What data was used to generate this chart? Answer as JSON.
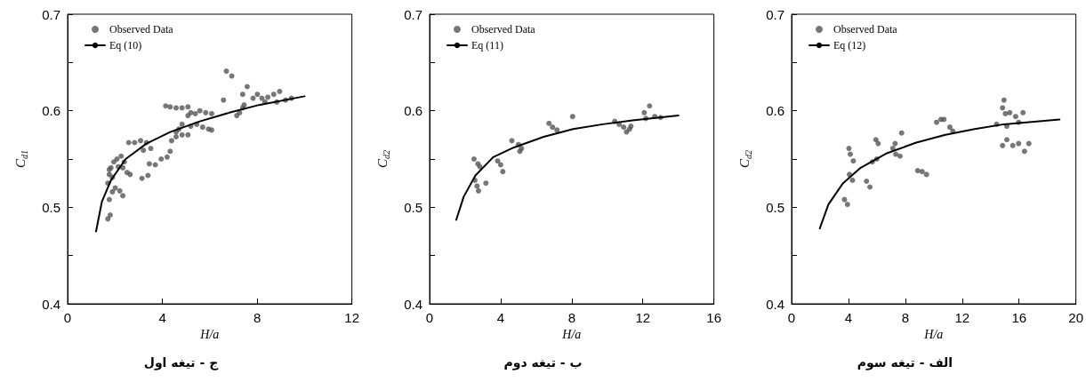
{
  "chart_data": [
    {
      "type": "scatter",
      "title": "ج - تیغه اول",
      "xlabel": "H/a",
      "ylabel": "C$_{d1}$",
      "xlim": [
        0,
        12
      ],
      "xticks": [
        0,
        4,
        8,
        12
      ],
      "ylim": [
        0.4,
        0.7
      ],
      "yticks": [
        0.4,
        {
          "value": 0.45,
          "label": null
        },
        0.5,
        {
          "value": 0.55,
          "label": null
        },
        0.6,
        {
          "value": 0.65,
          "label": null
        },
        0.7
      ],
      "legend": "top left",
      "marker": "circle",
      "series": [
        {
          "name": "Observed Data",
          "color": "#555555",
          "x": [
            1.7,
            1.8,
            1.76,
            1.89,
            2.01,
            2.2,
            2.33,
            1.7,
            1.76,
            1.83,
            1.95,
            2.08,
            2.26,
            2.39,
            2.33,
            2.51,
            2.64,
            2.14,
            1.76,
            1.89,
            2.58,
            2.83,
            3.08,
            3.33,
            3.51,
            3.2,
            3.14,
            3.39,
            3.45,
            3.7,
            3.95,
            4.2,
            4.33,
            4.39,
            4.58,
            4.83,
            5.08,
            4.7,
            4.83,
            4.58,
            4.14,
            4.33,
            4.58,
            4.83,
            5.08,
            5.2,
            5.39,
            5.58,
            5.83,
            6.08,
            5.08,
            5.2,
            5.45,
            5.7,
            5.95,
            6.08,
            6.58,
            7.14,
            7.26,
            7.39,
            7.45,
            7.58,
            7.39,
            7.83,
            8.01,
            8.2,
            8.45,
            8.7,
            8.95,
            9.2,
            9.45,
            6.7,
            6.93,
            8.33,
            8.83
          ],
          "values": [
            0.488,
            0.492,
            0.508,
            0.516,
            0.52,
            0.517,
            0.512,
            0.525,
            0.534,
            0.541,
            0.547,
            0.55,
            0.553,
            0.547,
            0.541,
            0.536,
            0.534,
            0.542,
            0.539,
            0.531,
            0.567,
            0.567,
            0.569,
            0.567,
            0.561,
            0.559,
            0.53,
            0.533,
            0.545,
            0.544,
            0.55,
            0.552,
            0.558,
            0.569,
            0.573,
            0.575,
            0.575,
            0.581,
            0.586,
            0.578,
            0.605,
            0.604,
            0.603,
            0.603,
            0.604,
            0.598,
            0.597,
            0.6,
            0.598,
            0.597,
            0.595,
            0.584,
            0.586,
            0.583,
            0.581,
            0.58,
            0.611,
            0.595,
            0.598,
            0.603,
            0.606,
            0.625,
            0.617,
            0.613,
            0.617,
            0.613,
            0.614,
            0.617,
            0.62,
            0.611,
            0.613,
            0.641,
            0.636,
            0.609,
            0.609
          ]
        },
        {
          "name": "Eq (10)",
          "type": "line",
          "marker": "none",
          "color": "#000000",
          "x": [
            1.2,
            1.45,
            1.83,
            2.45,
            3.33,
            4.33,
            5.58,
            6.83,
            8.08,
            10.0
          ],
          "values": [
            0.475,
            0.506,
            0.528,
            0.55,
            0.566,
            0.578,
            0.589,
            0.598,
            0.606,
            0.615
          ]
        }
      ]
    },
    {
      "type": "scatter",
      "title": "ب - تیغه دوم",
      "xlabel": "H/a",
      "ylabel": "C$_{d2}$",
      "xlim": [
        0,
        16
      ],
      "xticks": [
        0,
        4,
        8,
        12,
        16
      ],
      "ylim": [
        0.4,
        0.7
      ],
      "yticks": [
        0.4,
        {
          "value": 0.45,
          "label": null
        },
        0.5,
        {
          "value": 0.55,
          "label": null
        },
        0.6,
        {
          "value": 0.65,
          "label": null
        },
        0.7
      ],
      "legend": "top left",
      "marker": "circle",
      "series": [
        {
          "name": "Observed Data",
          "color": "#555555",
          "x": [
            2.5,
            2.72,
            2.83,
            2.55,
            2.67,
            2.75,
            3.17,
            3.83,
            4.0,
            4.12,
            4.63,
            5.0,
            5.08,
            5.17,
            6.72,
            6.92,
            7.17,
            8.05,
            10.42,
            10.67,
            10.92,
            11.08,
            11.25,
            11.33,
            12.08,
            12.38,
            12.17,
            12.67,
            13.0
          ],
          "values": [
            0.55,
            0.545,
            0.542,
            0.528,
            0.522,
            0.517,
            0.525,
            0.548,
            0.544,
            0.537,
            0.569,
            0.565,
            0.558,
            0.561,
            0.587,
            0.583,
            0.58,
            0.594,
            0.589,
            0.586,
            0.583,
            0.578,
            0.581,
            0.584,
            0.598,
            0.605,
            0.592,
            0.594,
            0.593
          ]
        },
        {
          "name": "Eq (11)",
          "type": "line",
          "marker": "none",
          "color": "#000000",
          "x": [
            1.5,
            1.92,
            2.58,
            3.58,
            4.75,
            6.42,
            8.08,
            9.75,
            11.42,
            14.0
          ],
          "values": [
            0.487,
            0.511,
            0.533,
            0.552,
            0.562,
            0.573,
            0.581,
            0.586,
            0.59,
            0.595
          ]
        }
      ]
    },
    {
      "type": "scatter",
      "title": "الف - تیغه سوم",
      "xlabel": "H/a",
      "ylabel": "C$_{d2}$",
      "xlim": [
        0,
        20
      ],
      "xticks": [
        0,
        4,
        8,
        12,
        16,
        20
      ],
      "ylim": [
        0.4,
        0.7
      ],
      "yticks": [
        0.4,
        {
          "value": 0.45,
          "label": null
        },
        0.5,
        {
          "value": 0.55,
          "label": null
        },
        0.6,
        {
          "value": 0.65,
          "label": null
        },
        0.7
      ],
      "legend": "top left",
      "marker": "circle",
      "series": [
        {
          "name": "Observed Data",
          "color": "#555555",
          "x": [
            3.72,
            3.93,
            4.03,
            4.13,
            4.34,
            4.07,
            4.28,
            5.27,
            5.51,
            5.68,
            5.99,
            5.93,
            6.09,
            7.12,
            7.33,
            7.63,
            7.28,
            7.74,
            8.87,
            9.18,
            9.49,
            10.2,
            10.51,
            10.72,
            11.13,
            11.34,
            14.42,
            14.84,
            14.94,
            15.04,
            15.35,
            15.76,
            16.28,
            15.97,
            15.14,
            14.84,
            15.14,
            15.56,
            15.97,
            16.38,
            16.69
          ],
          "values": [
            0.508,
            0.503,
            0.561,
            0.555,
            0.548,
            0.534,
            0.528,
            0.527,
            0.521,
            0.547,
            0.55,
            0.57,
            0.566,
            0.561,
            0.555,
            0.553,
            0.566,
            0.577,
            0.538,
            0.537,
            0.534,
            0.588,
            0.591,
            0.591,
            0.583,
            0.579,
            0.586,
            0.603,
            0.611,
            0.597,
            0.598,
            0.594,
            0.598,
            0.588,
            0.584,
            0.564,
            0.57,
            0.564,
            0.566,
            0.558,
            0.566
          ]
        },
        {
          "name": "Eq (12)",
          "type": "line",
          "marker": "none",
          "color": "#000000",
          "x": [
            1.98,
            2.59,
            3.62,
            4.86,
            6.71,
            8.77,
            10.82,
            12.88,
            14.94,
            18.85
          ],
          "values": [
            0.478,
            0.503,
            0.525,
            0.541,
            0.556,
            0.567,
            0.575,
            0.581,
            0.586,
            0.591
          ]
        }
      ]
    }
  ]
}
